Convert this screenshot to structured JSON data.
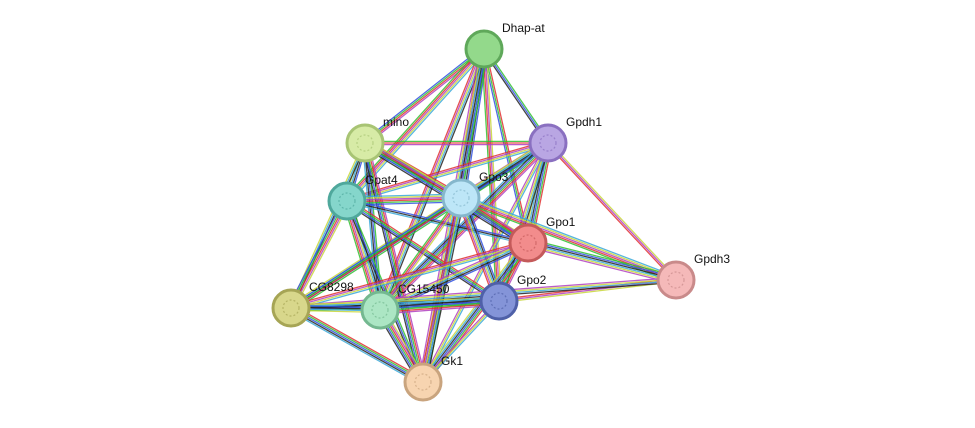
{
  "nodes": [
    {
      "label": "Dhap-at"
    },
    {
      "label": "Gpdh1"
    },
    {
      "label": "mino"
    },
    {
      "label": "Gpat4"
    },
    {
      "label": "Gpo3"
    },
    {
      "label": "Gpo1"
    },
    {
      "label": "Gpdh3"
    },
    {
      "label": "Gpo2"
    },
    {
      "label": "CG8298"
    },
    {
      "label": "CG15450"
    },
    {
      "label": "Gk1"
    }
  ]
}
